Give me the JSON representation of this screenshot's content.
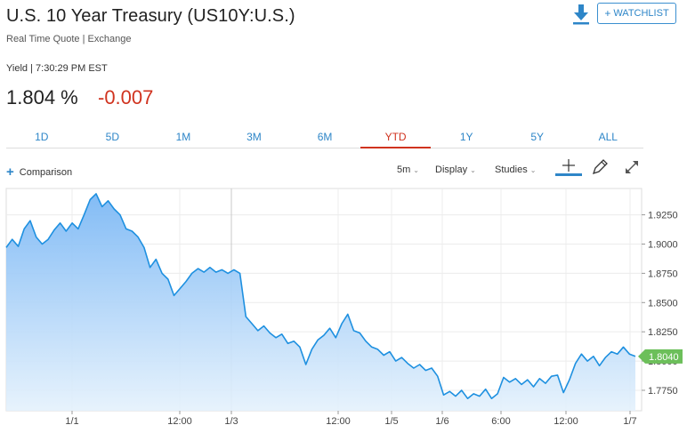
{
  "header": {
    "title": "U.S. 10 Year Treasury (US10Y:U.S.)",
    "subtitle": "Real Time Quote | Exchange",
    "watchlist_label": "WATCHLIST",
    "download_icon": "download-arrow-icon"
  },
  "quote": {
    "meta": "Yield | 7:30:29 PM EST",
    "price": "1.804 %",
    "change": "-0.007",
    "change_color": "#d0331f"
  },
  "range_tabs": [
    {
      "label": "1D"
    },
    {
      "label": "5D"
    },
    {
      "label": "1M"
    },
    {
      "label": "3M"
    },
    {
      "label": "6M"
    },
    {
      "label": "YTD",
      "active": true
    },
    {
      "label": "1Y"
    },
    {
      "label": "5Y"
    },
    {
      "label": "ALL"
    }
  ],
  "toolbar": {
    "comparison_label": "Comparison",
    "interval_label": "5m",
    "display_label": "Display",
    "studies_label": "Studies"
  },
  "colors": {
    "accent": "#2e86c8",
    "line": "#1e90e0",
    "price_badge": "#6cbf5a",
    "negative": "#d0331f"
  },
  "chart_data": {
    "type": "area",
    "y_ticks": [
      "1.9250",
      "1.9000",
      "1.8750",
      "1.8500",
      "1.8250",
      "1.8000",
      "1.7750"
    ],
    "y_tick_values": [
      1.925,
      1.9,
      1.875,
      1.85,
      1.825,
      1.8,
      1.775
    ],
    "x_ticks": [
      "1/1",
      "12:00",
      "1/3",
      "12:00",
      "1/5",
      "1/6",
      "6:00",
      "12:00",
      "1/7"
    ],
    "ylim": [
      1.7575,
      1.9475
    ],
    "current_value_label": "1.8040",
    "current_value": 1.804,
    "grid": true,
    "series": [
      {
        "values": [
          1.897,
          1.904,
          1.898,
          1.913,
          1.92,
          1.906,
          1.9,
          1.904,
          1.912,
          1.918,
          1.911,
          1.918,
          1.913,
          1.925,
          1.938,
          1.943,
          1.932,
          1.937,
          1.93,
          1.925,
          1.913,
          1.911,
          1.906,
          1.897,
          1.88,
          1.887,
          1.875,
          1.87,
          1.856,
          1.862,
          1.868,
          1.875,
          1.879,
          1.876,
          1.88,
          1.876,
          1.878,
          1.875,
          1.878,
          1.875,
          1.838,
          1.832,
          1.826,
          1.83,
          1.824,
          1.82,
          1.823,
          1.815,
          1.817,
          1.812,
          1.797,
          1.81,
          1.818,
          1.822,
          1.828,
          1.82,
          1.832,
          1.84,
          1.826,
          1.824,
          1.817,
          1.812,
          1.81,
          1.805,
          1.808,
          1.8,
          1.803,
          1.798,
          1.794,
          1.797,
          1.792,
          1.794,
          1.787,
          1.771,
          1.774,
          1.77,
          1.775,
          1.768,
          1.772,
          1.77,
          1.776,
          1.768,
          1.772,
          1.786,
          1.782,
          1.785,
          1.78,
          1.784,
          1.778,
          1.785,
          1.781,
          1.787,
          1.788,
          1.773,
          1.784,
          1.798,
          1.806,
          1.8,
          1.804,
          1.796,
          1.803,
          1.808,
          1.806,
          1.812,
          1.806,
          1.804
        ]
      }
    ]
  }
}
